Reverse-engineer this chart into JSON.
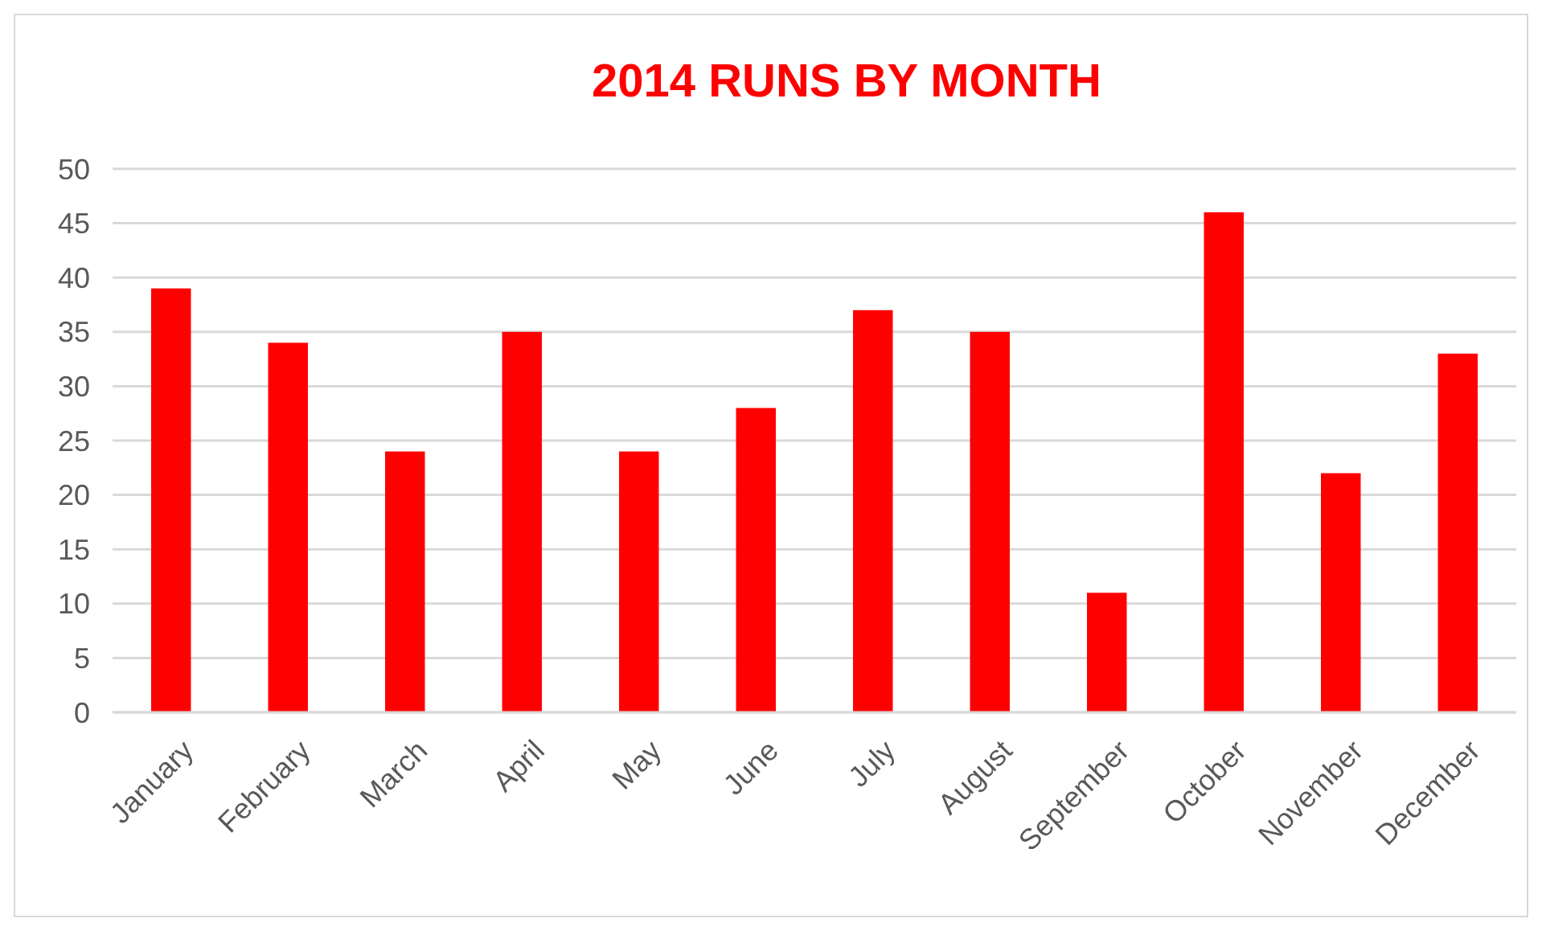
{
  "chart_data": {
    "type": "bar",
    "title": "2014 RUNS BY MONTH",
    "categories": [
      "January",
      "February",
      "March",
      "April",
      "May",
      "June",
      "July",
      "August",
      "September",
      "October",
      "November",
      "December"
    ],
    "values": [
      39,
      34,
      24,
      35,
      24,
      28,
      37,
      35,
      11,
      46,
      22,
      33
    ],
    "color": "#ff0000",
    "ylim": [
      0,
      50
    ],
    "yticks": [
      0,
      5,
      10,
      15,
      20,
      25,
      30,
      35,
      40,
      45,
      50
    ],
    "grid": "y"
  }
}
